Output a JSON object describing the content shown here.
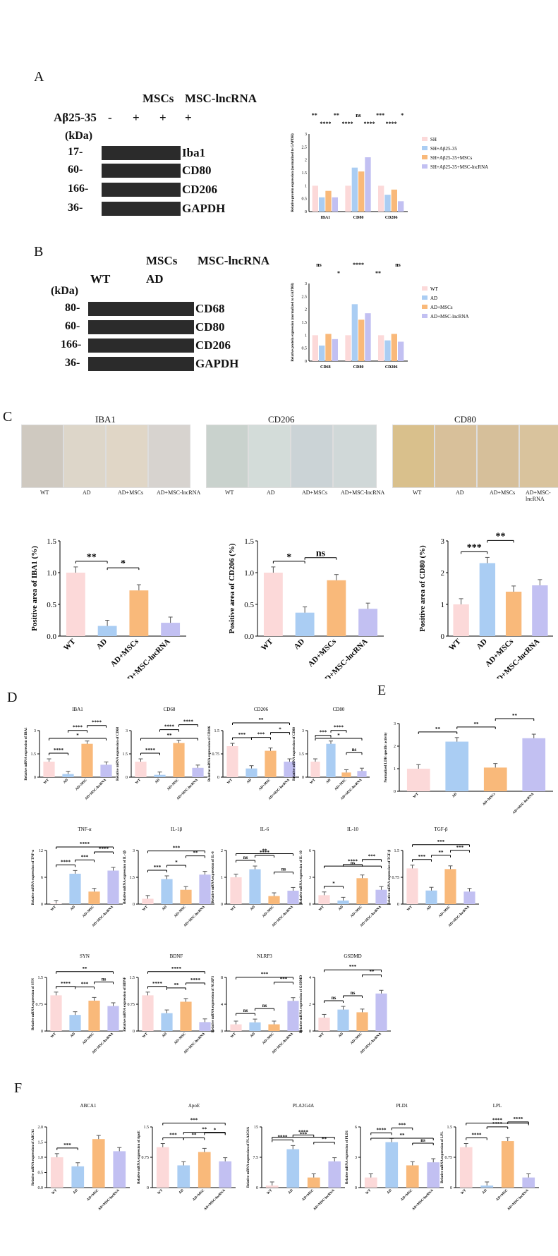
{
  "panels": {
    "A": "A",
    "B": "B",
    "C": "C",
    "D": "D",
    "E": "E",
    "F": "F"
  },
  "panel_A": {
    "abeta": "Aβ25-35",
    "conditions": [
      "-",
      "+",
      "+",
      "+"
    ],
    "top_labels": [
      "MSCs",
      "MSC-lncRNA"
    ],
    "kda": "(kDa)",
    "rows": [
      {
        "mw": "17-",
        "label": "Iba1"
      },
      {
        "mw": "60-",
        "label": "CD80"
      },
      {
        "mw": "166-",
        "label": "CD206"
      },
      {
        "mw": "36-",
        "label": "GAPDH"
      }
    ]
  },
  "panel_B": {
    "top_labels": [
      "MSCs",
      "MSC-lncRNA"
    ],
    "groups": [
      "WT",
      "AD"
    ],
    "kda": "(kDa)",
    "rows": [
      {
        "mw": "80-",
        "label": "CD68"
      },
      {
        "mw": "60-",
        "label": "CD80"
      },
      {
        "mw": "166-",
        "label": "CD206"
      },
      {
        "mw": "36-",
        "label": "GAPDH"
      }
    ]
  },
  "panel_C": {
    "titles": [
      "IBA1",
      "CD206",
      "CD80"
    ],
    "sublabels": [
      "WT",
      "AD",
      "AD+MSCs",
      "AD+MSC-lncRNA"
    ]
  },
  "colors": {
    "wt": "#fcd9d9",
    "ad": "#aacdf3",
    "msc": "#f9b97a",
    "lnc": "#c2c0f2"
  },
  "chart_data": [
    {
      "id": "A-bar",
      "type": "bar",
      "ylabel": "Relative protein expression (normalized to GAPDH)",
      "categories": [
        "IBA1",
        "CD80",
        "CD206"
      ],
      "ylim": [
        0,
        3.0
      ],
      "series": [
        {
          "name": "SH",
          "values": [
            1.0,
            1.0,
            1.0
          ]
        },
        {
          "name": "SH+Aβ25-35",
          "values": [
            0.55,
            1.7,
            0.65
          ]
        },
        {
          "name": "SH+Aβ25-35+MSCs",
          "values": [
            0.8,
            1.55,
            0.85
          ]
        },
        {
          "name": "SH+Aβ25-35+MSC-lncRNA",
          "values": [
            0.55,
            2.1,
            0.4
          ]
        }
      ],
      "sig": [
        "**",
        "****",
        "**",
        "****",
        "ns",
        "****",
        "***",
        "****",
        "*"
      ]
    },
    {
      "id": "B-bar",
      "type": "bar",
      "ylabel": "Relative protein expression (normalized to GAPDH)",
      "categories": [
        "CD68",
        "CD80",
        "CD206"
      ],
      "ylim": [
        0,
        3
      ],
      "series": [
        {
          "name": "WT",
          "values": [
            1.0,
            1.0,
            1.0
          ]
        },
        {
          "name": "AD",
          "values": [
            0.6,
            2.2,
            0.8
          ]
        },
        {
          "name": "AD+MSCs",
          "values": [
            1.05,
            1.6,
            1.05
          ]
        },
        {
          "name": "AD+MSC-lncRNA",
          "values": [
            0.85,
            1.85,
            0.75
          ]
        }
      ],
      "sig": [
        "ns",
        "*",
        "****",
        "**",
        "ns"
      ]
    },
    {
      "id": "C-iba1",
      "type": "bar",
      "ylabel": "Positive area of IBA1 (%)",
      "categories": [
        "WT",
        "AD",
        "AD+MSCs",
        "AD+MSC-lncRNA"
      ],
      "values": [
        1.0,
        0.16,
        0.72,
        0.21
      ],
      "ylim": [
        0,
        1.5
      ],
      "yticks": [
        "0.0",
        "0.5",
        "1.0",
        "1.5"
      ],
      "sig": [
        "**",
        "*"
      ]
    },
    {
      "id": "C-cd206",
      "type": "bar",
      "ylabel": "Positive area of CD206 (%)",
      "categories": [
        "WT",
        "AD",
        "AD+MSCs",
        "AD+MSC-lncRNA"
      ],
      "values": [
        1.0,
        0.37,
        0.88,
        0.43
      ],
      "ylim": [
        0,
        1.5
      ],
      "yticks": [
        "0.0",
        "0.5",
        "1.0",
        "1.5"
      ],
      "sig": [
        "*",
        "ns"
      ]
    },
    {
      "id": "C-cd80",
      "type": "bar",
      "ylabel": "Positive area of CD80 (%)",
      "categories": [
        "WT",
        "AD",
        "AD+MSCs",
        "AD+MSC-lncRNA"
      ],
      "values": [
        1.0,
        2.3,
        1.4,
        1.6
      ],
      "ylim": [
        0,
        3
      ],
      "yticks": [
        "0",
        "1",
        "2",
        "3"
      ],
      "sig": [
        "***",
        "**"
      ]
    },
    {
      "id": "D-iba1",
      "type": "bar",
      "title": "IBA1",
      "ylabel": "Relative mRNA expression of IBA1",
      "categories": [
        "WT",
        "AD",
        "AD+MSC",
        "AD+MSC-lncRNA"
      ],
      "values": [
        1.0,
        0.2,
        2.15,
        0.8
      ],
      "ylim": [
        0,
        3
      ],
      "sig": [
        "****",
        "****",
        "****",
        "*"
      ]
    },
    {
      "id": "D-cd68",
      "type": "bar",
      "title": "CD68",
      "ylabel": "Relative mRNA expression of CD68",
      "categories": [
        "WT",
        "AD",
        "AD+MSC",
        "AD+MSC-lncRNA"
      ],
      "values": [
        1.0,
        0.15,
        2.2,
        0.6
      ],
      "ylim": [
        0,
        3
      ],
      "sig": [
        "****",
        "****",
        "****",
        "**"
      ]
    },
    {
      "id": "D-cd206",
      "type": "bar",
      "title": "CD206",
      "ylabel": "Relative mRNA expression of CD206",
      "categories": [
        "WT",
        "AD",
        "AD+MSC",
        "AD+MSC-lncRNA"
      ],
      "values": [
        1.0,
        0.28,
        0.85,
        0.5
      ],
      "ylim": [
        0,
        1.5
      ],
      "sig": [
        "***",
        "***",
        "*",
        "**"
      ]
    },
    {
      "id": "D-cd80",
      "type": "bar",
      "title": "CD80",
      "ylabel": "Relative mRNA expression of CD80",
      "categories": [
        "WT",
        "AD",
        "AD+MSC",
        "AD+MSC-lncRNA"
      ],
      "values": [
        1.0,
        2.15,
        0.3,
        0.4
      ],
      "ylim": [
        0,
        3
      ],
      "sig": [
        "***",
        "****",
        "ns",
        "*"
      ]
    },
    {
      "id": "E-ldh",
      "type": "bar",
      "ylabel": "Normalized LDH specific activity",
      "categories": [
        "WT",
        "AD",
        "AD+MSCs",
        "AD+MSC-lncRNA"
      ],
      "values": [
        1.0,
        2.2,
        1.05,
        2.35
      ],
      "ylim": [
        0,
        3
      ],
      "yticks": [
        "0",
        "1",
        "2",
        "3"
      ],
      "sig": [
        "**",
        "**",
        "**"
      ]
    },
    {
      "id": "D-tnf",
      "type": "bar",
      "title": "TNF-α",
      "ylabel": "Relative mRNA expression of TNF-α",
      "categories": [
        "WT",
        "AD",
        "AD+MSC",
        "AD+MSC-lncRNA"
      ],
      "values": [
        0.1,
        6.8,
        2.8,
        7.5
      ],
      "ylim": [
        0,
        12
      ],
      "sig": [
        "****",
        "***",
        "****",
        "****"
      ]
    },
    {
      "id": "D-il1b",
      "type": "bar",
      "title": "IL-1β",
      "ylabel": "Relative mRNA expression of IL-1β",
      "categories": [
        "WT",
        "AD",
        "AD+MSC",
        "AD+MSC-lncRNA"
      ],
      "values": [
        0.3,
        1.4,
        0.8,
        1.65
      ],
      "ylim": [
        0,
        3
      ],
      "sig": [
        "***",
        "*",
        "**",
        "***"
      ]
    },
    {
      "id": "D-il6",
      "type": "bar",
      "title": "IL-6",
      "ylabel": "Relative mRNA expression of IL-6",
      "categories": [
        "WT",
        "AD",
        "AD+MSC",
        "AD+MSC-lncRNA"
      ],
      "values": [
        1.0,
        1.3,
        0.3,
        0.5
      ],
      "ylim": [
        0,
        2
      ],
      "sig": [
        "ns",
        "****",
        "ns",
        "**"
      ]
    },
    {
      "id": "D-il10",
      "type": "bar",
      "title": "IL-10",
      "ylabel": "Relative mRNA expression of IL-10",
      "categories": [
        "WT",
        "AD",
        "AD+MSC",
        "AD+MSC-lncRNA"
      ],
      "values": [
        1.0,
        0.4,
        2.9,
        1.6
      ],
      "ylim": [
        0,
        6
      ],
      "sig": [
        "*",
        "****",
        "***",
        "ns"
      ]
    },
    {
      "id": "D-tgfb",
      "type": "bar",
      "title": "TGF-β",
      "ylabel": "Relative mRNA expression of TGF-β",
      "categories": [
        "WT",
        "AD",
        "AD+MSC",
        "AD+MSC-lncRNA"
      ],
      "values": [
        1.0,
        0.38,
        0.98,
        0.35
      ],
      "ylim": [
        0,
        1.5
      ],
      "sig": [
        "***",
        "**",
        "***",
        "***"
      ]
    },
    {
      "id": "D-syn",
      "type": "bar",
      "title": "SYN",
      "ylabel": "Relative mRNA expression of SYN",
      "categories": [
        "WT",
        "AD",
        "AD+MSC",
        "AD+MSC-lncRNA"
      ],
      "values": [
        1.0,
        0.45,
        0.85,
        0.7
      ],
      "ylim": [
        0,
        1.5
      ],
      "sig": [
        "****",
        "***",
        "ns",
        "**"
      ]
    },
    {
      "id": "D-bdnf",
      "type": "bar",
      "title": "BDNF",
      "ylabel": "Relative mRNA expression of BDNF",
      "categories": [
        "WT",
        "AD",
        "AD+MSC",
        "AD+MSC-lncRNA"
      ],
      "values": [
        1.0,
        0.5,
        0.82,
        0.25
      ],
      "ylim": [
        0,
        1.5
      ],
      "sig": [
        "****",
        "**",
        "****",
        "****"
      ]
    },
    {
      "id": "D-nlrp3",
      "type": "bar",
      "title": "NLRP3",
      "ylabel": "Relative mRNA expression of NLRP3",
      "categories": [
        "WT",
        "AD",
        "AD+MSC",
        "AD+MSC-lncRNA"
      ],
      "values": [
        1.0,
        1.3,
        1.0,
        4.5
      ],
      "ylim": [
        0,
        8
      ],
      "sig": [
        "ns",
        "ns",
        "***",
        "***"
      ]
    },
    {
      "id": "D-gsdmd",
      "type": "bar",
      "title": "GSDMD",
      "ylabel": "Relative mRNA expression of GSDMD",
      "categories": [
        "WT",
        "AD",
        "AD+MSC",
        "AD+MSC-lncRNA"
      ],
      "values": [
        1.0,
        1.6,
        1.4,
        2.8
      ],
      "ylim": [
        0,
        4
      ],
      "sig": [
        "ns",
        "ns",
        "**",
        "***"
      ]
    },
    {
      "id": "F-abca1",
      "type": "bar",
      "title": "ABCA1",
      "ylabel": "Relative mRNA expression of ABCA1",
      "categories": [
        "WT",
        "AD",
        "AD+MSC",
        "AD+MSC-lncRNA"
      ],
      "values": [
        1.0,
        0.7,
        1.6,
        1.2
      ],
      "ylim": [
        0,
        2
      ],
      "yticks": [
        "0.0",
        "0.5",
        "1.0",
        "1.5",
        "2.0"
      ],
      "sig": [
        "***"
      ]
    },
    {
      "id": "F-apoe",
      "type": "bar",
      "title": "ApoE",
      "ylabel": "Relative mRNA expression of ApoE",
      "categories": [
        "WT",
        "AD",
        "AD+MSC",
        "AD+MSC-lncRNA"
      ],
      "values": [
        1.0,
        0.55,
        0.88,
        0.65
      ],
      "ylim": [
        0,
        1.5
      ],
      "sig": [
        "***",
        "**",
        "*",
        "***",
        "**"
      ]
    },
    {
      "id": "F-pla2g4a",
      "type": "bar",
      "title": "PLA2G4A",
      "ylabel": "Relative mRNA expression of PLA2G4A",
      "categories": [
        "WT",
        "AD",
        "AD+MSC",
        "AD+MSC-lncRNA"
      ],
      "values": [
        0.5,
        9.5,
        2.5,
        6.5
      ],
      "ylim": [
        0,
        15
      ],
      "sig": [
        "****",
        "****",
        "**",
        "***"
      ]
    },
    {
      "id": "F-pld1",
      "type": "bar",
      "title": "PLD1",
      "ylabel": "Relative mRNA expression of PLD1",
      "categories": [
        "WT",
        "AD",
        "AD+MSC",
        "AD+MSC-lncRNA"
      ],
      "values": [
        1.0,
        4.5,
        2.2,
        2.5
      ],
      "ylim": [
        0,
        6
      ],
      "sig": [
        "****",
        "***",
        "ns",
        "**"
      ]
    },
    {
      "id": "F-lpl",
      "type": "bar",
      "title": "LPL",
      "ylabel": "Relative mRNA expression of LPL",
      "categories": [
        "WT",
        "AD",
        "AD+MSC",
        "AD+MSC-lncRNA"
      ],
      "values": [
        1.0,
        0.05,
        1.15,
        0.25
      ],
      "ylim": [
        0,
        1.5
      ],
      "sig": [
        "****",
        "****",
        "****",
        "****"
      ]
    }
  ]
}
